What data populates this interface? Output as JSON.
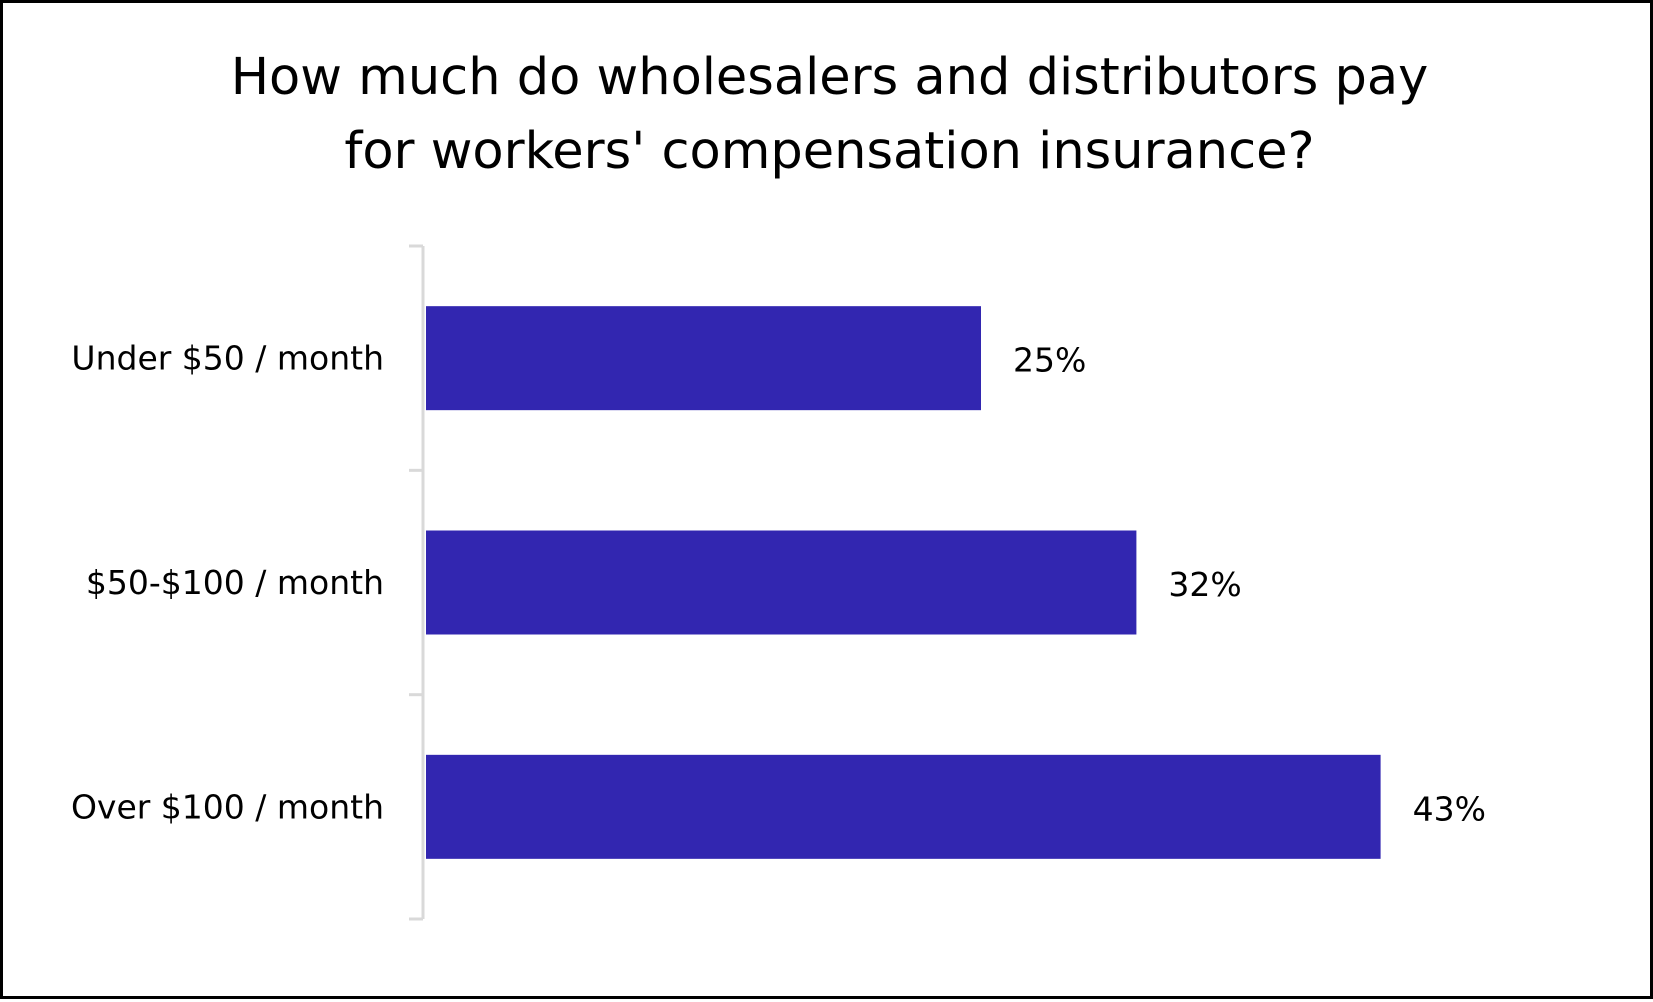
{
  "chart_data": {
    "type": "bar",
    "orientation": "horizontal",
    "title": "How much do wholesalers and distributors pay for workers' compensation insurance?",
    "title_lines": [
      "How much do wholesalers and distributors pay",
      "for workers' compensation insurance?"
    ],
    "categories": [
      "Under $50 / month",
      "$50-$100 / month",
      "Over $100 / month"
    ],
    "values": [
      25,
      32,
      43
    ],
    "value_labels": [
      "25%",
      "32%",
      "43%"
    ],
    "unit": "%",
    "xlim": [
      0,
      50
    ],
    "bar_color": "#3226b0",
    "axis_color": "#d9d9d9",
    "grid": false,
    "legend": "none"
  }
}
